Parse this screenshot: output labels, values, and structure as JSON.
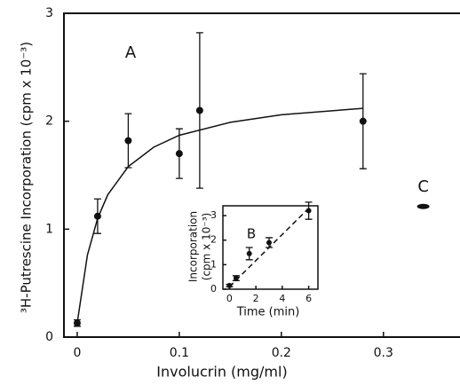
{
  "chart_data": [
    {
      "type": "scatter",
      "ylabel": "³H-Putrescine Incorporation (cpm x 10⁻³)",
      "xlabel": "Involucrin (mg/ml)",
      "annotation": "A",
      "xlim": [
        -0.013,
        0.375
      ],
      "ylim": [
        0,
        3
      ],
      "xticks": [
        0,
        0.1,
        0.2,
        0.3
      ],
      "yticks": [
        0,
        1,
        2,
        3
      ],
      "color": "#111111",
      "points": {
        "x": [
          0,
          0.02,
          0.05,
          0.1,
          0.12,
          0.28
        ],
        "values": [
          0.13,
          1.12,
          1.82,
          1.7,
          2.1,
          2.0
        ],
        "errors": [
          0.03,
          0.16,
          0.25,
          0.23,
          0.72,
          0.44
        ]
      },
      "fit": {
        "x": [
          0,
          0.01,
          0.02,
          0.03,
          0.05,
          0.075,
          0.1,
          0.15,
          0.2,
          0.28
        ],
        "values": [
          0.13,
          0.76,
          1.1,
          1.32,
          1.58,
          1.76,
          1.87,
          1.99,
          2.06,
          2.12
        ],
        "dashed": false
      },
      "marker": {
        "label": "C",
        "x": [
          0.339
        ],
        "values": [
          1.21
        ]
      }
    },
    {
      "type": "scatter",
      "ylabel": [
        "Incorporation",
        "(cpm x 10⁻³)"
      ],
      "xlabel": "Time (min)",
      "annotation": "B",
      "xlim": [
        -0.5,
        6.7
      ],
      "ylim": [
        0,
        3.4
      ],
      "xticks": [
        0,
        2,
        4,
        6
      ],
      "yticks": [
        0,
        1,
        2,
        3
      ],
      "color": "#111111",
      "points": {
        "x": [
          0,
          0.5,
          1.5,
          3,
          6
        ],
        "values": [
          0.15,
          0.45,
          1.45,
          1.9,
          3.2
        ],
        "errors": [
          0.05,
          0.1,
          0.25,
          0.2,
          0.35
        ]
      },
      "fit": {
        "x": [
          0,
          6
        ],
        "values": [
          0.1,
          3.3
        ],
        "dashed": true
      }
    }
  ]
}
